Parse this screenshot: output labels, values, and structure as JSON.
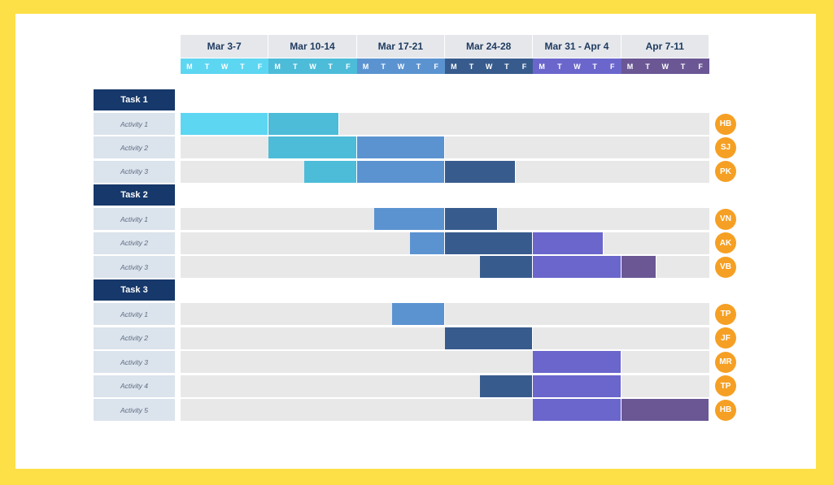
{
  "colors": {
    "background": "#FDE047",
    "header": "#e5e7eb",
    "task_label": "#16386a",
    "activity_label": "#dbe3ec",
    "track": "#e8e8e8",
    "avatar": "#f5a024",
    "weeks": [
      "#5dd6f2",
      "#4cbcd8",
      "#5b93d1",
      "#385b8d",
      "#6a66cc",
      "#6a5794"
    ]
  },
  "weeks": [
    {
      "label": "Mar 3-7",
      "days": [
        "M",
        "T",
        "W",
        "T",
        "F"
      ]
    },
    {
      "label": "Mar 10-14",
      "days": [
        "M",
        "T",
        "W",
        "T",
        "F"
      ]
    },
    {
      "label": "Mar 17-21",
      "days": [
        "M",
        "T",
        "W",
        "T",
        "F"
      ]
    },
    {
      "label": "Mar 24-28",
      "days": [
        "M",
        "T",
        "W",
        "T",
        "F"
      ]
    },
    {
      "label": "Mar 31 - Apr 4",
      "days": [
        "M",
        "T",
        "W",
        "T",
        "F"
      ]
    },
    {
      "label": "Apr 7-11",
      "days": [
        "M",
        "T",
        "W",
        "T",
        "F"
      ]
    }
  ],
  "tasks": [
    {
      "label": "Task 1",
      "activities": [
        {
          "label": "Activity 1",
          "assignee": "HB",
          "start_day": 0,
          "end_day": 9
        },
        {
          "label": "Activity 2",
          "assignee": "SJ",
          "start_day": 5,
          "end_day": 15
        },
        {
          "label": "Activity 3",
          "assignee": "PK",
          "start_day": 7,
          "end_day": 19
        }
      ]
    },
    {
      "label": "Task 2",
      "activities": [
        {
          "label": "Activity 1",
          "assignee": "VN",
          "start_day": 11,
          "end_day": 18
        },
        {
          "label": "Activity 2",
          "assignee": "AK",
          "start_day": 13,
          "end_day": 24
        },
        {
          "label": "Activity 3",
          "assignee": "VB",
          "start_day": 17,
          "end_day": 27
        }
      ]
    },
    {
      "label": "Task 3",
      "activities": [
        {
          "label": "Activity 1",
          "assignee": "TP",
          "start_day": 12,
          "end_day": 15
        },
        {
          "label": "Activity 2",
          "assignee": "JF",
          "start_day": 15,
          "end_day": 20
        },
        {
          "label": "Activity 3",
          "assignee": "MR",
          "start_day": 20,
          "end_day": 25
        },
        {
          "label": "Activity 4",
          "assignee": "TP",
          "start_day": 17,
          "end_day": 25
        },
        {
          "label": "Activity 5",
          "assignee": "HB",
          "start_day": 20,
          "end_day": 30
        }
      ]
    }
  ]
}
